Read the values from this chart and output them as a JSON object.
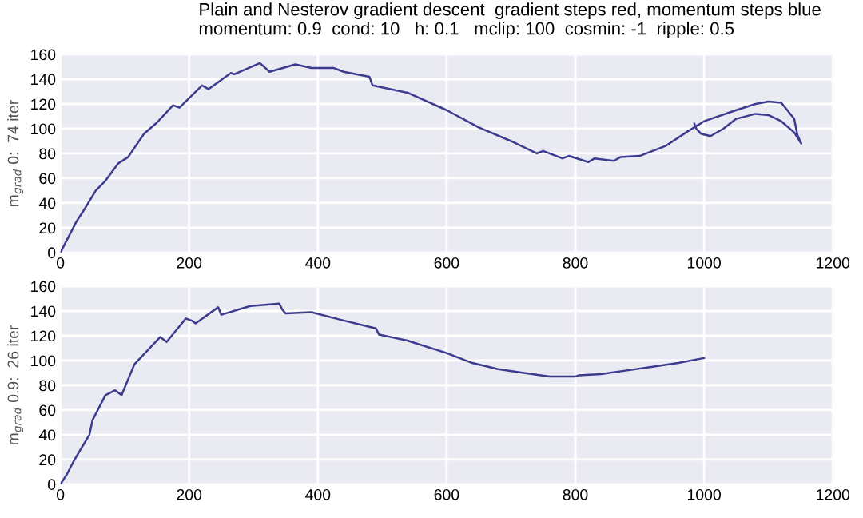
{
  "chart_data": [
    {
      "type": "line",
      "title": "Plain and Nesterov gradient descent  gradient steps red, momentum steps blue",
      "subtitle": "momentum: 0.9  cond: 10   h: 0.1   mclip: 100  cosmin: -1  ripple: 0.5",
      "ylabel": "m$_{grad}$ 0:  74 iter",
      "xlim": [
        0,
        1200
      ],
      "ylim": [
        0,
        160
      ],
      "xticks": [
        0,
        200,
        400,
        600,
        800,
        1000,
        1200
      ],
      "yticks": [
        0,
        20,
        40,
        60,
        80,
        100,
        120,
        140,
        160
      ],
      "grid": true,
      "line_style": "solid",
      "series": [
        {
          "color": "#3b3b8f",
          "x": [
            0,
            25,
            35,
            55,
            70,
            90,
            105,
            130,
            150,
            175,
            185,
            220,
            230,
            265,
            270,
            310,
            325,
            365,
            390,
            425,
            440,
            480,
            485,
            540,
            600,
            650,
            700,
            740,
            750,
            780,
            790,
            820,
            830,
            860,
            870,
            900,
            940,
            975,
            1000,
            1050,
            1080,
            1100,
            1120,
            1140,
            1145,
            1151,
            1140,
            1120,
            1100,
            1080,
            1050,
            1030,
            1010,
            995,
            988,
            985
          ],
          "values": [
            0,
            25,
            33,
            50,
            58,
            72,
            77,
            96,
            105,
            119,
            117,
            135,
            132,
            145,
            144,
            153,
            146,
            152,
            149,
            149,
            146,
            142,
            135,
            129,
            115,
            101,
            90,
            80,
            82,
            76,
            78,
            73,
            76,
            74,
            77,
            78,
            86,
            98,
            106,
            115,
            120,
            122,
            121,
            108,
            95,
            88,
            97,
            106,
            111,
            112,
            108,
            100,
            94,
            96,
            100,
            104
          ]
        }
      ]
    },
    {
      "type": "line",
      "ylabel": "m$_{grad}$ 0.9:  26 iter",
      "xlim": [
        0,
        1200
      ],
      "ylim": [
        0,
        160
      ],
      "xticks": [
        0,
        200,
        400,
        600,
        800,
        1000,
        1200
      ],
      "yticks": [
        0,
        20,
        40,
        60,
        80,
        100,
        120,
        140,
        160
      ],
      "grid": true,
      "line_style": "solid",
      "series": [
        {
          "color": "#3b3b8f",
          "x": [
            0,
            10,
            20,
            30,
            45,
            50,
            70,
            85,
            95,
            115,
            155,
            165,
            195,
            205,
            210,
            245,
            250,
            295,
            340,
            345,
            350,
            390,
            435,
            490,
            495,
            540,
            600,
            640,
            680,
            720,
            760,
            800,
            805,
            840,
            880,
            920,
            960,
            1000
          ],
          "values": [
            0,
            8,
            18,
            27,
            40,
            52,
            72,
            76,
            72,
            97,
            119,
            115,
            134,
            132,
            130,
            143,
            137,
            144,
            146,
            141,
            138,
            139,
            133,
            126,
            121,
            116,
            106,
            98,
            93,
            90,
            87,
            87,
            88,
            89,
            92,
            95,
            98,
            102
          ]
        }
      ]
    }
  ]
}
